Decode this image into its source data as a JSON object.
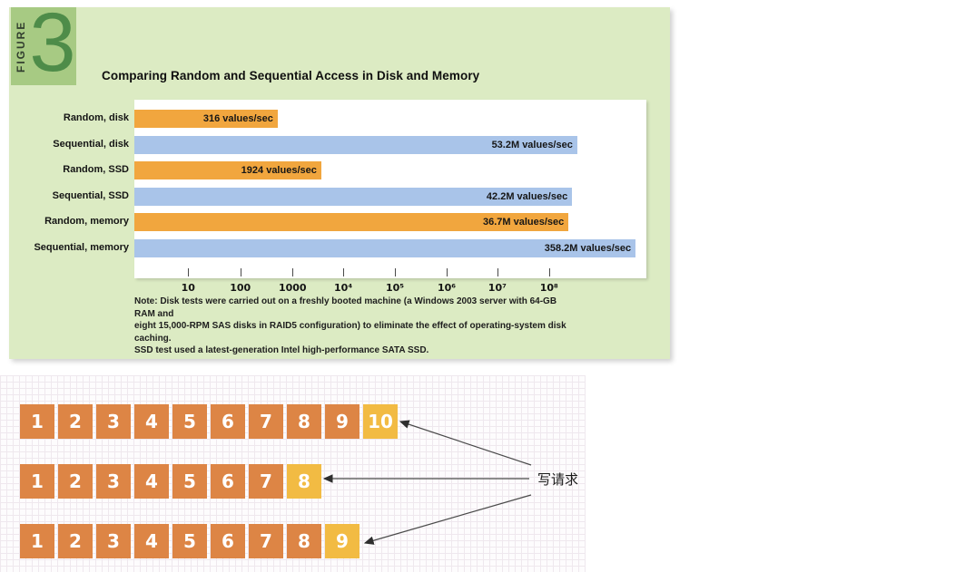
{
  "figure": {
    "kicker": "FIGURE",
    "number": "3",
    "title": "Comparing Random and Sequential Access in Disk and Memory",
    "note_lines": [
      "Note: Disk tests were carried out on a freshly booted machine (a Windows 2003 server with 64-GB RAM and",
      "eight 15,000-RPM SAS disks in RAID5 configuration) to eliminate the effect of operating-system disk caching.",
      "SSD test used a latest-generation Intel high-performance SATA SSD."
    ],
    "colors": {
      "panel_bg": "#dcebc3",
      "badge_bg": "#a7ca83",
      "number_green": "#4e8c49",
      "bar_orange": "#f1a63e",
      "bar_blue": "#a9c4e9",
      "cell_orange": "#dd8545",
      "cell_yellow": "#f2bb43"
    }
  },
  "chart_data": {
    "type": "bar",
    "orientation": "horizontal",
    "title": "Comparing Random and Sequential Access in Disk and Memory",
    "xlabel": "",
    "ylabel": "",
    "xscale": "log",
    "grid": false,
    "legend": "none",
    "categories": [
      "Random, disk",
      "Sequential, disk",
      "Random, SSD",
      "Sequential, SSD",
      "Random, memory",
      "Sequential, memory"
    ],
    "values": [
      316,
      53200000,
      1924,
      42200000,
      36700000,
      358200000
    ],
    "value_labels": [
      "316 values/sec",
      "53.2M values/sec",
      "1924 values/sec",
      "42.2M values/sec",
      "36.7M values/sec",
      "358.2M values/sec"
    ],
    "bar_colors": [
      "orange",
      "blue",
      "orange",
      "blue",
      "orange",
      "blue"
    ],
    "x_ticks": [
      "10",
      "100",
      "1000",
      "10⁴",
      "10⁵",
      "10⁶",
      "10⁷",
      "10⁸"
    ],
    "tick_pct": [
      10.5,
      20.7,
      30.9,
      40.8,
      50.9,
      61.0,
      70.9,
      81.0
    ],
    "bar_pct": [
      28.0,
      86.5,
      36.5,
      85.5,
      84.8,
      97.9
    ]
  },
  "memory_diagram": {
    "annotation": "写请求",
    "rows": [
      {
        "cells": [
          "1",
          "2",
          "3",
          "4",
          "5",
          "6",
          "7",
          "8",
          "9",
          "10"
        ],
        "highlight_index": 9
      },
      {
        "cells": [
          "1",
          "2",
          "3",
          "4",
          "5",
          "6",
          "7",
          "8"
        ],
        "highlight_index": 7
      },
      {
        "cells": [
          "1",
          "2",
          "3",
          "4",
          "5",
          "6",
          "7",
          "8",
          "9"
        ],
        "highlight_index": 8
      }
    ]
  }
}
